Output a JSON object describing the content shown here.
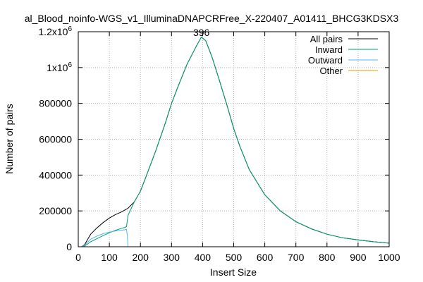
{
  "chart_data": {
    "type": "line",
    "title": "al_Blood_noinfo-WGS_v1_IlluminaDNAPCRFree_X-220407_A01411_BHCG3KDSX3",
    "xlabel": "Insert Size",
    "ylabel": "Number of pairs",
    "xlim": [
      0,
      1000
    ],
    "ylim": [
      0,
      1200000
    ],
    "x_ticks": [
      0,
      100,
      200,
      300,
      400,
      500,
      600,
      700,
      800,
      900,
      1000
    ],
    "x_tick_labels": [
      "0",
      "100",
      "200",
      "300",
      "400",
      "500",
      "600",
      "700",
      "800",
      "900",
      "1000"
    ],
    "y_ticks": [
      0,
      200000,
      400000,
      600000,
      800000,
      1000000,
      1200000
    ],
    "y_tick_labels": [
      "0",
      "200000",
      "400000",
      "600000",
      "800000",
      "1x10^6",
      "1.2x10^6"
    ],
    "grid": true,
    "legend_position": "top-right",
    "annotations": [
      {
        "text": "396",
        "x": 396,
        "y": 1200000
      }
    ],
    "series": [
      {
        "name": "All pairs",
        "color": "#000000",
        "x": [
          10,
          20,
          30,
          40,
          60,
          80,
          100,
          120,
          140,
          150,
          155,
          160,
          180,
          200,
          220,
          250,
          280,
          300,
          320,
          350,
          380,
          396,
          410,
          430,
          450,
          480,
          500,
          520,
          550,
          600,
          650,
          700,
          750,
          800,
          850,
          900,
          950,
          1000
        ],
        "values": [
          0,
          10000,
          40000,
          70000,
          105000,
          135000,
          160000,
          180000,
          195000,
          205000,
          210000,
          215000,
          250000,
          310000,
          400000,
          540000,
          690000,
          800000,
          890000,
          1020000,
          1120000,
          1170000,
          1150000,
          1060000,
          950000,
          780000,
          660000,
          560000,
          430000,
          290000,
          200000,
          140000,
          100000,
          70000,
          50000,
          38000,
          28000,
          20000
        ]
      },
      {
        "name": "Inward",
        "color": "#009e73",
        "x": [
          10,
          20,
          30,
          40,
          60,
          80,
          100,
          120,
          140,
          150,
          155,
          160,
          180,
          200,
          220,
          250,
          280,
          300,
          320,
          350,
          380,
          396,
          410,
          430,
          450,
          480,
          500,
          520,
          550,
          600,
          650,
          700,
          750,
          800,
          850,
          900,
          950,
          1000
        ],
        "values": [
          0,
          4000,
          15000,
          28000,
          45000,
          62000,
          78000,
          92000,
          103000,
          108000,
          112000,
          175000,
          250000,
          310000,
          400000,
          540000,
          690000,
          800000,
          890000,
          1020000,
          1120000,
          1170000,
          1150000,
          1060000,
          950000,
          780000,
          660000,
          560000,
          430000,
          290000,
          200000,
          140000,
          100000,
          70000,
          50000,
          38000,
          28000,
          20000
        ]
      },
      {
        "name": "Outward",
        "color": "#56b4e9",
        "x": [
          10,
          20,
          30,
          40,
          60,
          80,
          100,
          120,
          140,
          150,
          155,
          158,
          160,
          1000
        ],
        "values": [
          0,
          6000,
          25000,
          42000,
          60000,
          73000,
          82000,
          88000,
          92000,
          95000,
          97000,
          60000,
          0,
          0
        ]
      },
      {
        "name": "Other",
        "color": "#e69f00",
        "x": [
          0,
          1000
        ],
        "values": [
          0,
          0
        ]
      }
    ]
  }
}
